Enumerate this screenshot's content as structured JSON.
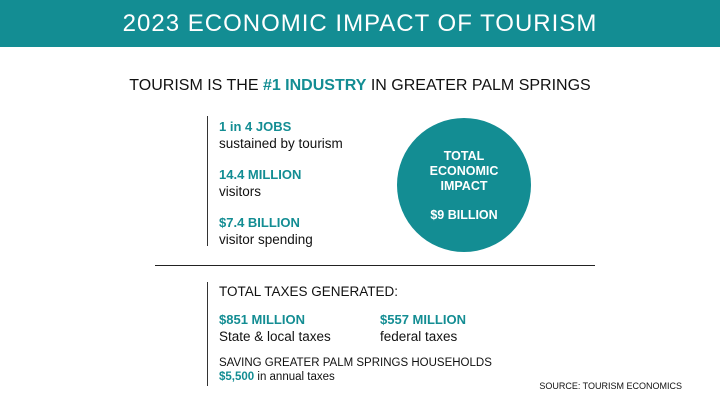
{
  "banner": {
    "title": "2023 ECONOMIC IMPACT OF TOURISM"
  },
  "headline": {
    "prefix": "TOURISM IS THE ",
    "highlight": "#1 INDUSTRY",
    "suffix": " IN GREATER PALM SPRINGS"
  },
  "stats": [
    {
      "value": "1 in 4 JOBS",
      "label": "sustained by tourism"
    },
    {
      "value": "14.4 MILLION",
      "label": "visitors"
    },
    {
      "value": "$7.4 BILLION",
      "label": "visitor spending"
    }
  ],
  "impact": {
    "title": "TOTAL ECONOMIC IMPACT",
    "value": "$9 BILLION"
  },
  "taxes": {
    "heading": "TOTAL TAXES GENERATED:",
    "items": [
      {
        "value": "$851 MILLION",
        "label": "State & local taxes"
      },
      {
        "value": "$557 MILLION",
        "label": "federal taxes"
      }
    ]
  },
  "savings": {
    "heading": "SAVING GREATER PALM SPRINGS HOUSEHOLDS",
    "amount": "$5,500",
    "suffix": " in annual taxes"
  },
  "source": "SOURCE: TOURISM ECONOMICS",
  "colors": {
    "accent": "#138d93",
    "text": "#111111",
    "background": "#ffffff"
  }
}
